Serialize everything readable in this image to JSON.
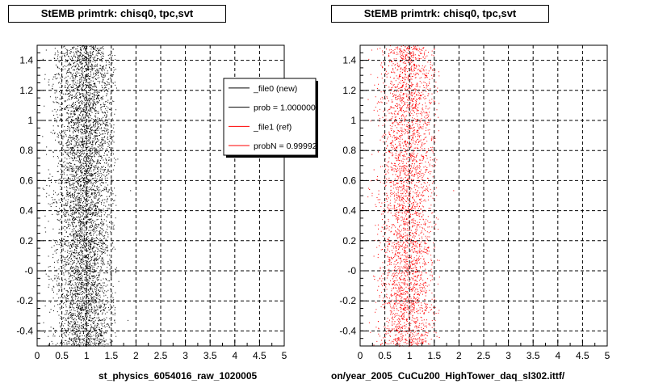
{
  "chart_data": [
    {
      "type": "scatter",
      "title": "StEMB primtrk: chisq0, tpc,svt",
      "xlabel": "st_physics_6054016_raw_1020005",
      "ylabel": "",
      "xlim": [
        0,
        5
      ],
      "ylim": [
        -0.5,
        1.5
      ],
      "xticks": [
        "0",
        "0.5",
        "1",
        "1.5",
        "2",
        "2.5",
        "3",
        "3.5",
        "4",
        "4.5",
        "5"
      ],
      "yticks": [
        "-0.4",
        "-0.2",
        "-0",
        "0.2",
        "0.4",
        "0.6",
        "0.8",
        "1",
        "1.2",
        "1.4"
      ],
      "grid": true,
      "point_color": "#000000",
      "distribution": {
        "x_center": 0.95,
        "x_spread": 0.3,
        "x_range": [
          0.1,
          1.6
        ],
        "y_range": [
          -0.5,
          1.5
        ]
      },
      "legend": {
        "placement": "top-right",
        "entries": [
          {
            "label": "_file0 (new)",
            "color": "#000000"
          },
          {
            "label": "prob = 1.000000",
            "color": "#000000"
          },
          {
            "label": "_file1 (ref)",
            "color": "#ff0000"
          },
          {
            "label": "probN = 0.99992",
            "color": "#ff0000"
          }
        ]
      }
    },
    {
      "type": "scatter",
      "title": "StEMB primtrk: chisq0, tpc,svt",
      "xlabel": "on/year_2005_CuCu200_HighTower_daq_sl302.ittf/",
      "ylabel": "",
      "xlim": [
        0,
        5
      ],
      "ylim": [
        -0.5,
        1.5
      ],
      "xticks": [
        "0",
        "0.5",
        "1",
        "1.5",
        "2",
        "2.5",
        "3",
        "3.5",
        "4",
        "4.5",
        "5"
      ],
      "yticks": [
        "-0.4",
        "-0.2",
        "-0",
        "0.2",
        "0.4",
        "0.6",
        "0.8",
        "1",
        "1.2",
        "1.4"
      ],
      "grid": true,
      "point_color": "#ff0000",
      "distribution": {
        "x_center": 0.95,
        "x_spread": 0.28,
        "x_range": [
          0.15,
          1.6
        ],
        "y_range": [
          -0.5,
          1.5
        ]
      }
    }
  ]
}
